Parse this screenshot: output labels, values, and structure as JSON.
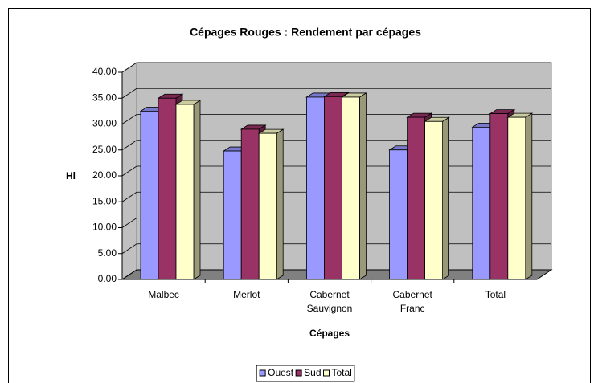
{
  "chart_data": {
    "type": "bar3d",
    "title": "Cépages Rouges : Rendement par cépages",
    "x_label": "Cépages",
    "y_label": "Hl",
    "categories": [
      "Malbec",
      "Merlot",
      "Cabernet Sauvignon",
      "Cabernet Franc",
      "Total"
    ],
    "series": [
      {
        "name": "Ouest",
        "color": "#9999ff",
        "values": [
          32.5,
          24.8,
          35.2,
          25.0,
          29.4
        ]
      },
      {
        "name": "Sud",
        "color": "#993366",
        "values": [
          35.0,
          29.0,
          35.3,
          31.3,
          32.0
        ]
      },
      {
        "name": "Total",
        "color": "#ffffcc",
        "values": [
          33.8,
          28.2,
          35.2,
          30.5,
          31.3
        ]
      }
    ],
    "ylim": [
      0,
      40
    ],
    "yticks": [
      {
        "value": 0,
        "label": "0.00"
      },
      {
        "value": 5,
        "label": "5.00"
      },
      {
        "value": 10,
        "label": "10.00"
      },
      {
        "value": 15,
        "label": "15.00"
      },
      {
        "value": 20,
        "label": "20.00"
      },
      {
        "value": 25,
        "label": "25.00"
      },
      {
        "value": 30,
        "label": "30.00"
      },
      {
        "value": 35,
        "label": "35.00"
      },
      {
        "value": 40,
        "label": "40.00"
      }
    ],
    "grid": true,
    "legend": "bottom"
  }
}
